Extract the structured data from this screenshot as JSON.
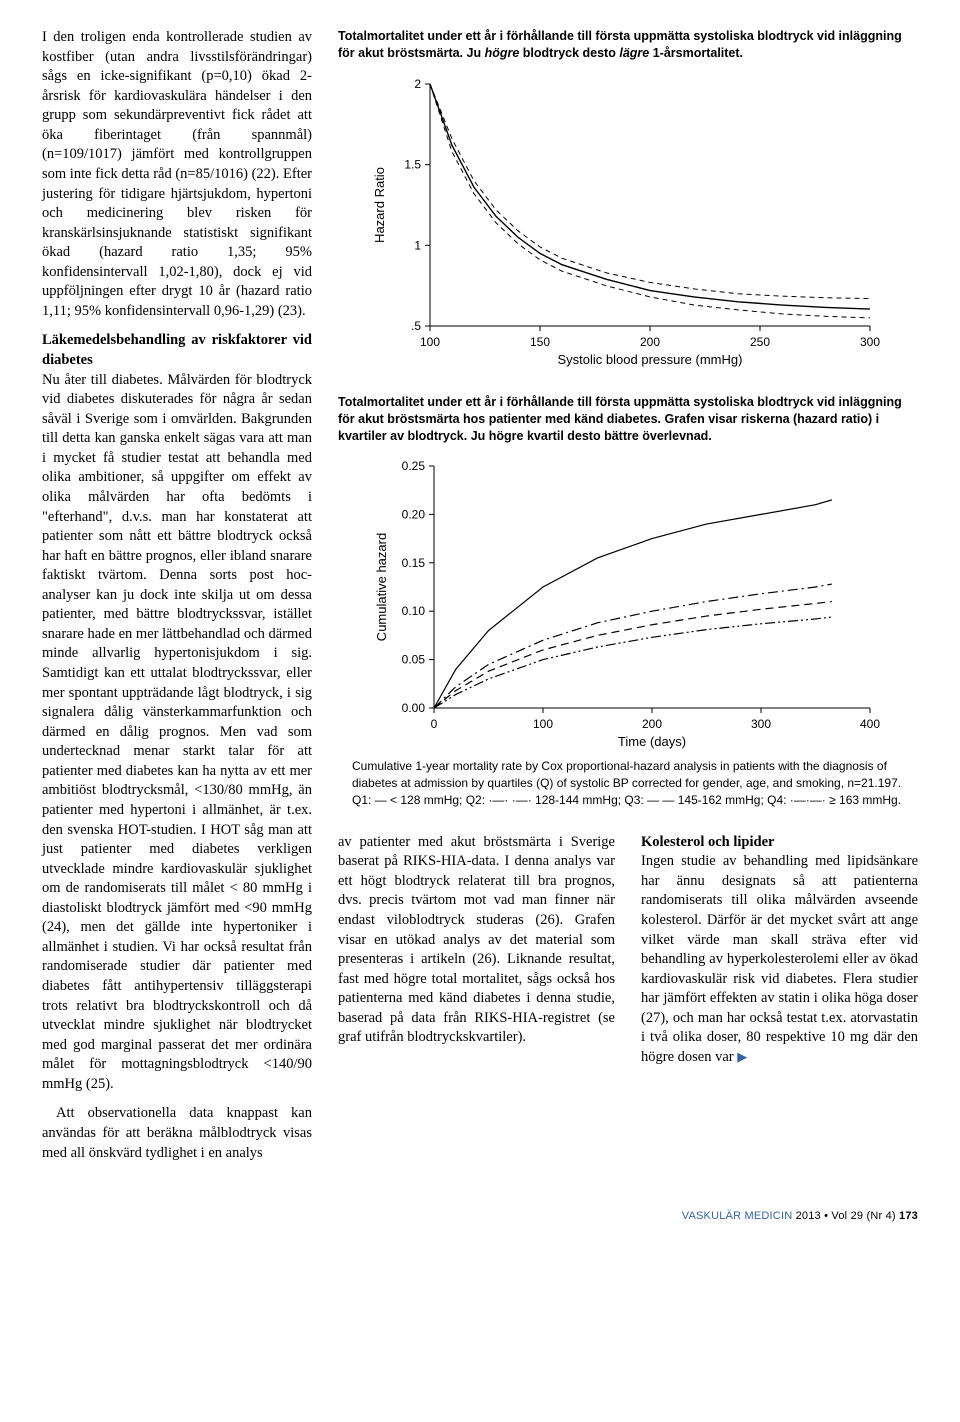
{
  "left_column": {
    "p1": "I den troligen enda kontrollerade studien av kostfiber (utan andra livsstilsförändringar) sågs en icke-signifikant (p=0,10) ökad 2-årsrisk för kardiovaskulära händelser i den grupp som sekundärpreventivt fick rådet att öka fiberintaget (från spannmål) (n=109/1017) jämfört med kontrollgruppen som inte fick detta råd (n=85/1016) (22). Efter justering för tidigare hjärtsjukdom, hypertoni och medicinering blev risken för kranskärlsinsjuknande statistiskt signifikant ökad (hazard ratio 1,35; 95% konfidensintervall 1,02-1,80), dock ej vid uppföljningen efter drygt 10 år (hazard ratio 1,11; 95% konfidensintervall 0,96-1,29) (23).",
    "h2": "Läkemedelsbehandling av riskfaktorer vid diabetes",
    "p2": "Nu åter till diabetes. Målvärden för blodtryck vid diabetes diskuterades för några år sedan såväl i Sverige som i omvärlden. Bakgrunden till detta kan ganska enkelt sägas vara att man i mycket få studier testat att behandla med olika ambitioner, så uppgifter om effekt av olika målvärden har ofta bedömts i \"efterhand\", d.v.s. man har konstaterat att patienter som nått ett bättre blodtryck också har haft en bättre prognos, eller ibland snarare faktiskt tvärtom. Denna sorts post hoc-analyser kan ju dock inte skilja ut om dessa patienter, med bättre blodtryckssvar, istället snarare hade en mer lättbehandlad och därmed minde allvarlig hypertonisjukdom i sig. Samtidigt kan ett uttalat blodtryckssvar, eller mer spontant uppträdande lågt blodtryck, i sig signalera dålig vänsterkammarfunktion och därmed en dålig prognos. Men vad som undertecknad menar starkt talar för att patienter med diabetes kan ha nytta av ett mer ambitiöst blodtrycksmål, <130/80 mmHg, än patienter med hypertoni i allmänhet, är t.ex. den svenska HOT-studien. I HOT såg man att just patienter med diabetes verkligen utvecklade mindre kardiovaskulär sjuklighet om de randomiserats till målet < 80 mmHg i diastoliskt blodtryck jämfört med <90 mmHg (24), men det gällde inte hypertoniker i allmänhet i studien. Vi har också resultat från randomiserade studier där patienter med diabetes fått antihypertensiv tilläggsterapi trots relativt bra blodtryckskontroll och då utvecklat mindre sjuklighet när blodtrycket med god marginal passerat det mer ordinära målet för mottagningsblodtryck <140/90 mmHg (25).",
    "p3": "Att observationella data knappast kan användas för att beräkna målblodtryck visas med all önskvärd tydlighet i en analys"
  },
  "fig1": {
    "caption_a": "Totalmortalitet under ett år i förhållande till första uppmätta systoliska blodtryck vid inläggning för akut bröstsmärta. Ju ",
    "caption_b": "högre",
    "caption_c": " blodtryck desto ",
    "caption_d": "lägre",
    "caption_e": " 1-årsmortalitet.",
    "ylabel": "Hazard Ratio",
    "xlabel": "Systolic blood pressure (mmHg)",
    "xlim": [
      100,
      300
    ],
    "ylim": [
      0.5,
      2.0
    ],
    "xticks": [
      100,
      150,
      200,
      250,
      300
    ],
    "yticks": [
      0.5,
      1,
      1.5,
      2
    ],
    "yticklabels": [
      ".5",
      "1",
      "1.5",
      "2"
    ],
    "curves": {
      "center": [
        [
          100,
          2.0
        ],
        [
          110,
          1.62
        ],
        [
          120,
          1.36
        ],
        [
          130,
          1.18
        ],
        [
          140,
          1.05
        ],
        [
          150,
          0.95
        ],
        [
          160,
          0.88
        ],
        [
          180,
          0.79
        ],
        [
          200,
          0.72
        ],
        [
          220,
          0.68
        ],
        [
          240,
          0.65
        ],
        [
          260,
          0.63
        ],
        [
          280,
          0.615
        ],
        [
          300,
          0.605
        ]
      ],
      "upper": [
        [
          100,
          2.0
        ],
        [
          110,
          1.66
        ],
        [
          120,
          1.4
        ],
        [
          130,
          1.22
        ],
        [
          140,
          1.09
        ],
        [
          150,
          0.99
        ],
        [
          160,
          0.92
        ],
        [
          180,
          0.83
        ],
        [
          200,
          0.77
        ],
        [
          220,
          0.73
        ],
        [
          240,
          0.7
        ],
        [
          260,
          0.685
        ],
        [
          280,
          0.675
        ],
        [
          300,
          0.67
        ]
      ],
      "lower": [
        [
          100,
          2.0
        ],
        [
          110,
          1.58
        ],
        [
          120,
          1.32
        ],
        [
          130,
          1.14
        ],
        [
          140,
          1.01
        ],
        [
          150,
          0.91
        ],
        [
          160,
          0.84
        ],
        [
          180,
          0.75
        ],
        [
          200,
          0.68
        ],
        [
          220,
          0.63
        ],
        [
          240,
          0.6
        ],
        [
          260,
          0.575
        ],
        [
          280,
          0.56
        ],
        [
          300,
          0.55
        ]
      ]
    },
    "line_color": "#000000",
    "dash_pattern": "5,4",
    "line_width_solid": 1.4,
    "line_width_dash": 1.0
  },
  "fig2": {
    "caption": "Totalmortalitet under ett år i förhållande till första uppmätta systoliska blodtryck vid inläggning för akut bröstsmärta hos patienter med känd diabetes. Grafen visar riskerna (hazard ratio) i kvartiler av blodtryck. Ju högre kvartil desto bättre överlevnad.",
    "subcaption": "Cumulative 1-year mortality rate by Cox proportional-hazard analysis in patients with the diagnosis of diabetes at admission by quartiles (Q) of systolic BP corrected for gender, age, and smoking, n=21.197. Q1: — < 128 mmHg; Q2: ·—· ·—· 128-144 mmHg; Q3: — — 145-162 mmHg; Q4: ·—·—· ≥ 163 mmHg.",
    "ylabel": "Cumulative hazard",
    "xlabel": "Time (days)",
    "xlim": [
      0,
      400
    ],
    "ylim": [
      0,
      0.25
    ],
    "xticks": [
      0,
      100,
      200,
      300,
      400
    ],
    "yticks": [
      0.0,
      0.05,
      0.1,
      0.15,
      0.2,
      0.25
    ],
    "series": {
      "Q1": {
        "style": "solid",
        "points": [
          [
            0,
            0
          ],
          [
            20,
            0.04
          ],
          [
            50,
            0.08
          ],
          [
            100,
            0.125
          ],
          [
            150,
            0.155
          ],
          [
            200,
            0.175
          ],
          [
            250,
            0.19
          ],
          [
            300,
            0.2
          ],
          [
            350,
            0.21
          ],
          [
            365,
            0.215
          ]
        ]
      },
      "Q2": {
        "style": "dashdot",
        "points": [
          [
            0,
            0
          ],
          [
            20,
            0.022
          ],
          [
            50,
            0.045
          ],
          [
            100,
            0.07
          ],
          [
            150,
            0.088
          ],
          [
            200,
            0.1
          ],
          [
            250,
            0.11
          ],
          [
            300,
            0.118
          ],
          [
            350,
            0.125
          ],
          [
            365,
            0.128
          ]
        ]
      },
      "Q3": {
        "style": "dash",
        "points": [
          [
            0,
            0
          ],
          [
            20,
            0.018
          ],
          [
            50,
            0.038
          ],
          [
            100,
            0.06
          ],
          [
            150,
            0.075
          ],
          [
            200,
            0.086
          ],
          [
            250,
            0.095
          ],
          [
            300,
            0.102
          ],
          [
            350,
            0.108
          ],
          [
            365,
            0.11
          ]
        ]
      },
      "Q4": {
        "style": "dashdotdot",
        "points": [
          [
            0,
            0
          ],
          [
            20,
            0.014
          ],
          [
            50,
            0.03
          ],
          [
            100,
            0.05
          ],
          [
            150,
            0.063
          ],
          [
            200,
            0.073
          ],
          [
            250,
            0.081
          ],
          [
            300,
            0.087
          ],
          [
            350,
            0.092
          ],
          [
            365,
            0.094
          ]
        ]
      }
    },
    "line_color": "#000000",
    "line_width": 1.2
  },
  "bottom": {
    "col1": "av patienter med akut bröstsmärta i Sverige baserat på RIKS-HIA-data. I denna analys var ett högt blodtryck relaterat till bra prognos, dvs. precis tvärtom mot vad man finner när endast viloblodtryck studeras (26). Grafen visar en utökad analys av det material som presenteras i artikeln (26). Liknande resultat, fast med högre total mortalitet, sågs också hos patienterna med känd diabetes i denna studie, baserad på data från RIKS-HIA-registret (se graf utifrån blodtryckskvartiler).",
    "col2_head": "Kolesterol och lipider",
    "col2": "Ingen studie av behandling med lipidsänkare har ännu designats så att patienterna randomiserats till olika målvärden avseende kolesterol. Därför är det mycket svårt att ange vilket värde man skall sträva efter vid behandling av hyperkolesterolemi eller av ökad kardiovaskulär risk vid diabetes. Flera studier har jämfört effekten av statin i olika höga doser (27), och man har också testat t.ex. atorvastatin i två olika doser, 80 respektive 10 mg där den högre dosen var"
  },
  "footer": {
    "journal": "VASKULÄR MEDICIN",
    "rest": " 2013 • Vol 29 (Nr 4)   ",
    "page": "173"
  }
}
